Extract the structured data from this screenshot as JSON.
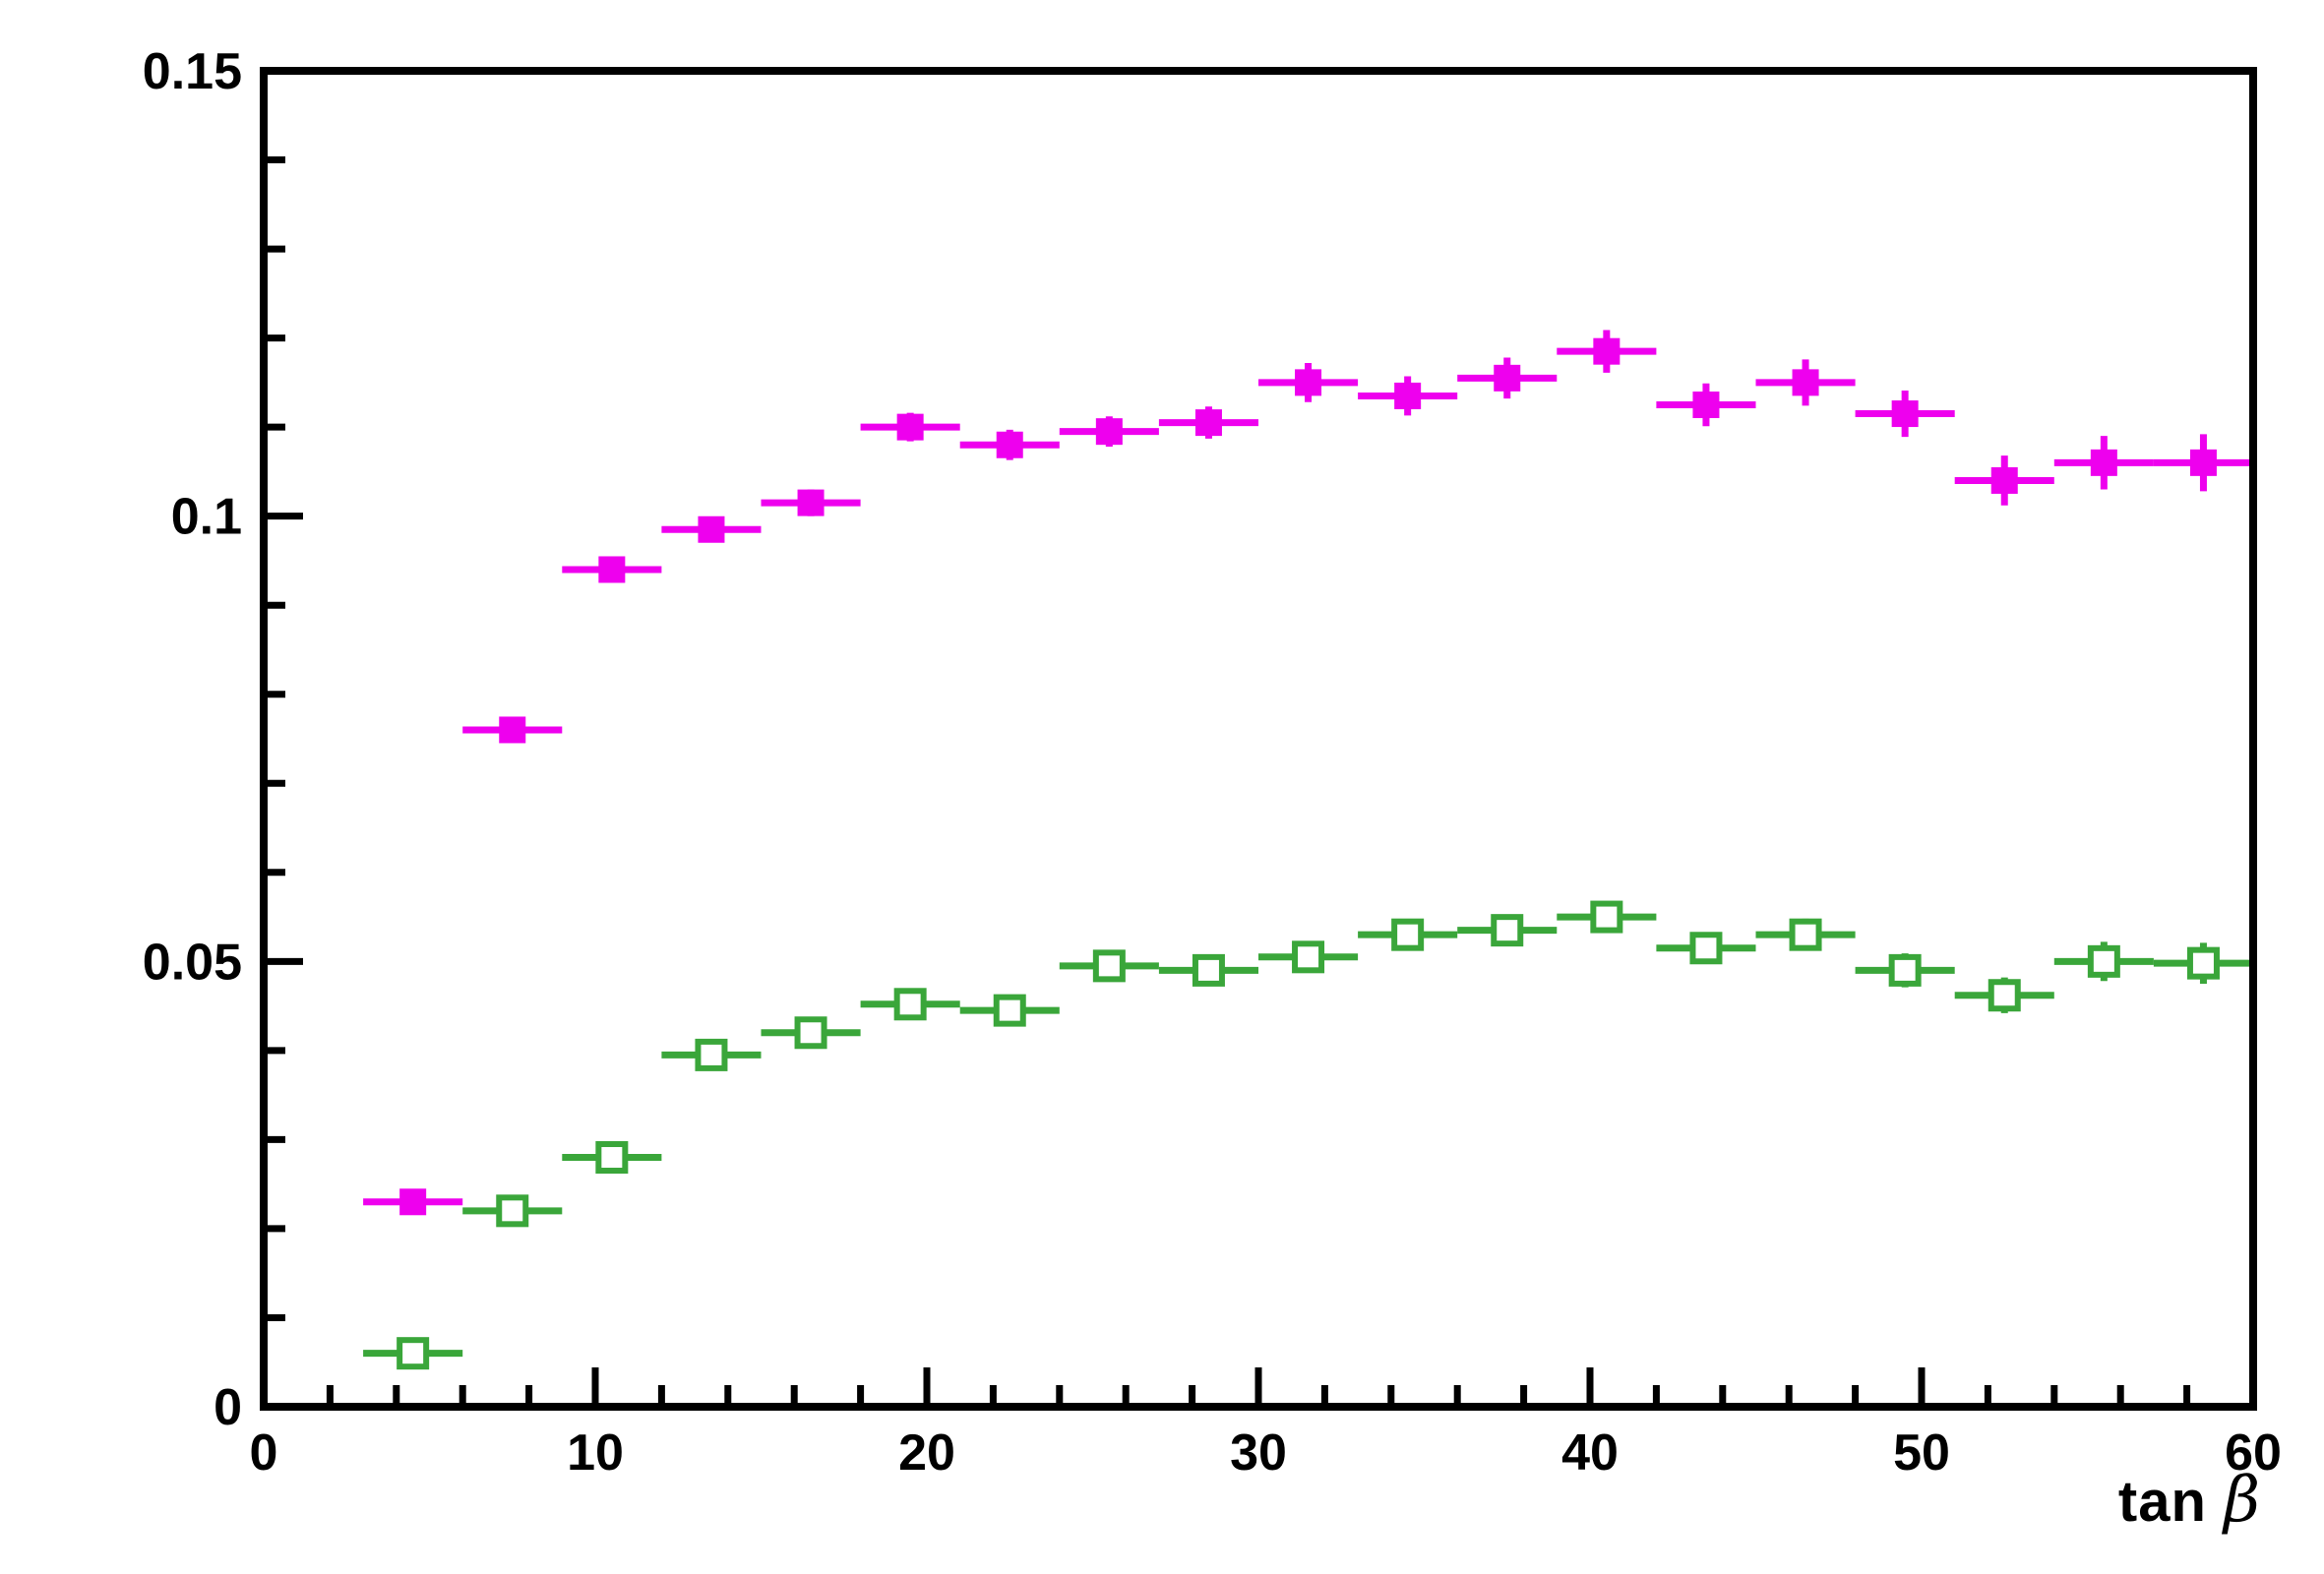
{
  "chart_data": {
    "type": "scatter",
    "title": "",
    "xlabel": "tan β",
    "xlabel_parts": {
      "prefix": "tan ",
      "symbol": "β"
    },
    "ylabel": "",
    "xlim": [
      0,
      60
    ],
    "ylim": [
      0,
      0.15
    ],
    "grid": false,
    "legend": "none",
    "x_major_ticks": [
      0,
      10,
      20,
      30,
      40,
      50,
      60
    ],
    "x_tick_labels": [
      "0",
      "10",
      "20",
      "30",
      "40",
      "50",
      "60"
    ],
    "x_minor_step": 2,
    "y_major_ticks": [
      0,
      0.05,
      0.1,
      0.15
    ],
    "y_tick_labels": [
      "0",
      "0.05",
      "0.1",
      "0.15"
    ],
    "y_minor_step": 0.01,
    "x": [
      4.5,
      7.5,
      10.5,
      13.5,
      16.5,
      19.5,
      22.5,
      25.5,
      28.5,
      31.5,
      34.5,
      37.5,
      40.5,
      43.5,
      46.5,
      49.5,
      52.5,
      55.5,
      58.5
    ],
    "xerr": 1.5,
    "series": [
      {
        "name": "magenta-filled-squares",
        "marker": "filled-square",
        "color": "#ee00ee",
        "values": [
          0.023,
          0.076,
          0.094,
          0.0985,
          0.1015,
          0.11,
          0.108,
          0.1095,
          0.1105,
          0.115,
          0.1135,
          0.1155,
          0.1185,
          0.1125,
          0.115,
          0.1115,
          0.104,
          0.106,
          0.106
        ],
        "yerr": [
          0.0008,
          0.0013,
          0.0013,
          0.0014,
          0.0015,
          0.0016,
          0.0017,
          0.0017,
          0.0018,
          0.0022,
          0.0022,
          0.0023,
          0.0024,
          0.0024,
          0.0026,
          0.0026,
          0.0028,
          0.003,
          0.0032
        ]
      },
      {
        "name": "green-open-squares",
        "marker": "open-square",
        "color": "#3aa63a",
        "values": [
          0.006,
          0.022,
          0.028,
          0.0395,
          0.042,
          0.0452,
          0.0445,
          0.0495,
          0.049,
          0.0505,
          0.053,
          0.0535,
          0.055,
          0.0515,
          0.053,
          0.049,
          0.0462,
          0.05,
          0.0498
        ],
        "yerr": [
          0.0005,
          0.0008,
          0.0009,
          0.001,
          0.0011,
          0.0012,
          0.0012,
          0.0013,
          0.0013,
          0.0015,
          0.0015,
          0.0016,
          0.0017,
          0.0017,
          0.0018,
          0.0019,
          0.002,
          0.0022,
          0.0023
        ]
      }
    ],
    "frame_color": "#000000",
    "background_color": "#ffffff"
  }
}
